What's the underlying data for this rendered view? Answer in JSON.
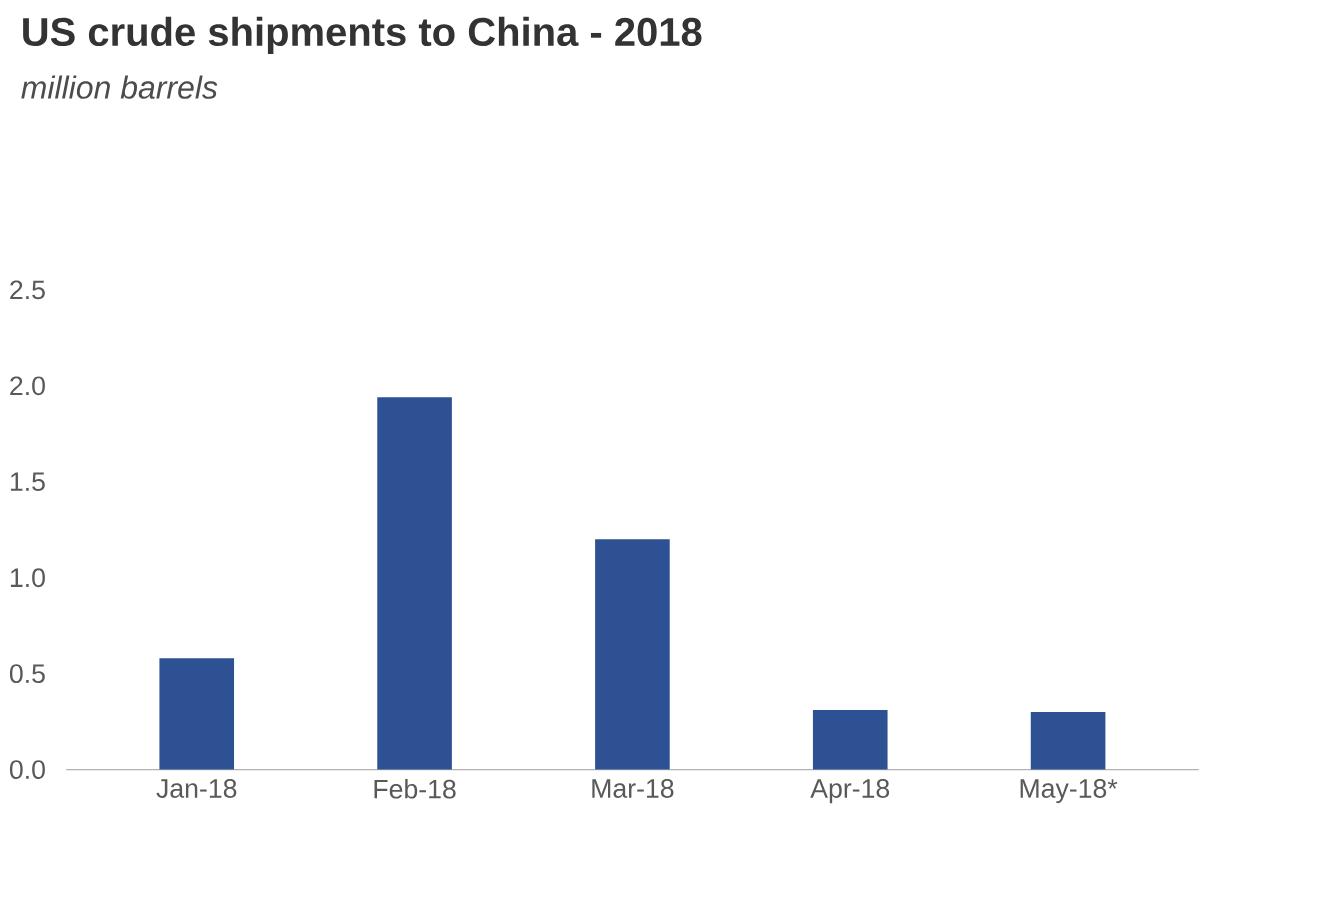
{
  "chart_data": {
    "type": "bar",
    "title": "US crude shipments to China - 2018",
    "subtitle": "million barrels",
    "categories": [
      "Jan-18",
      "Feb-18",
      "Mar-18",
      "Apr-18",
      "May-18*"
    ],
    "values": [
      0.58,
      1.94,
      1.2,
      0.31,
      0.3
    ],
    "color": "#2e5193",
    "ylim": [
      0,
      2.5
    ],
    "yticks": [
      {
        "value": 0,
        "label": "0.0"
      },
      {
        "value": 0.5,
        "label": "0.5"
      },
      {
        "value": 1,
        "label": "1.0"
      },
      {
        "value": 1.5,
        "label": "1.5"
      },
      {
        "value": 2,
        "label": "2.0"
      },
      {
        "value": 2.5,
        "label": "2.5"
      }
    ],
    "grid": false
  }
}
